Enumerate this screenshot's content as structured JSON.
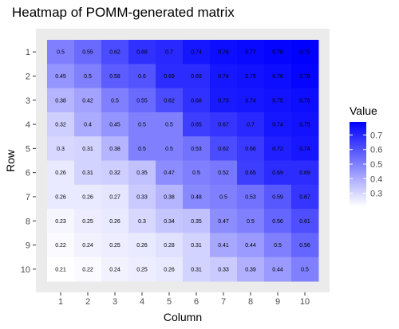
{
  "chart_data": {
    "type": "heatmap",
    "title": "Heatmap of POMM-generated matrix",
    "xlabel": "Column",
    "ylabel": "Row",
    "x_categories": [
      "1",
      "2",
      "3",
      "4",
      "5",
      "6",
      "7",
      "8",
      "9",
      "10"
    ],
    "y_categories": [
      "1",
      "2",
      "3",
      "4",
      "5",
      "6",
      "7",
      "8",
      "9",
      "10"
    ],
    "values": [
      [
        0.5,
        0.55,
        0.62,
        0.68,
        0.7,
        0.74,
        0.76,
        0.77,
        0.78,
        0.79
      ],
      [
        0.45,
        0.5,
        0.58,
        0.6,
        0.69,
        0.69,
        0.74,
        0.75,
        0.76,
        0.78
      ],
      [
        0.38,
        0.42,
        0.5,
        0.55,
        0.62,
        0.68,
        0.73,
        0.74,
        0.75,
        0.76
      ],
      [
        0.32,
        0.4,
        0.45,
        0.5,
        0.5,
        0.65,
        0.67,
        0.7,
        0.74,
        0.75
      ],
      [
        0.3,
        0.31,
        0.38,
        0.5,
        0.5,
        0.53,
        0.62,
        0.66,
        0.72,
        0.74
      ],
      [
        0.26,
        0.31,
        0.32,
        0.35,
        0.47,
        0.5,
        0.52,
        0.65,
        0.69,
        0.69
      ],
      [
        0.26,
        0.26,
        0.27,
        0.33,
        0.38,
        0.48,
        0.5,
        0.53,
        0.59,
        0.67
      ],
      [
        0.23,
        0.25,
        0.26,
        0.3,
        0.34,
        0.35,
        0.47,
        0.5,
        0.56,
        0.61
      ],
      [
        0.22,
        0.24,
        0.25,
        0.26,
        0.28,
        0.31,
        0.41,
        0.44,
        0.5,
        0.56
      ],
      [
        0.21,
        0.22,
        0.24,
        0.25,
        0.26,
        0.31,
        0.33,
        0.39,
        0.44,
        0.5
      ]
    ],
    "color_scale": {
      "low_color": "#ffffff",
      "high_color": "#0000ff",
      "min": 0.21,
      "max": 0.79
    },
    "legend": {
      "title": "Value",
      "ticks": [
        0.3,
        0.4,
        0.5,
        0.6,
        0.7
      ],
      "tick_labels": [
        "0.3",
        "0.4",
        "0.5",
        "0.6",
        "0.7"
      ],
      "placement": "right"
    },
    "panel_background": "#ebebeb",
    "grid": false
  }
}
